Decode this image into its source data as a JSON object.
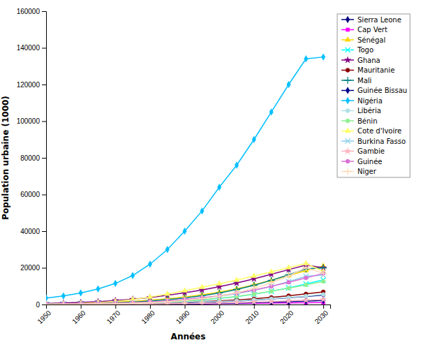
{
  "chart_data": {
    "type": "line",
    "xlabel": "Années",
    "ylabel": "Population urbaine (1000)",
    "x": [
      1950,
      1955,
      1960,
      1965,
      1970,
      1975,
      1980,
      1985,
      1990,
      1995,
      2000,
      2005,
      2010,
      2015,
      2020,
      2025,
      2030
    ],
    "series": [
      {
        "name": "Sierra Leone",
        "color": "#000080",
        "marker": "diamond",
        "values": [
          90,
          115,
          150,
          210,
          290,
          390,
          530,
          700,
          950,
          1200,
          1500,
          1900,
          2400,
          3000,
          3700,
          4400,
          5100
        ]
      },
      {
        "name": "Cap Vert",
        "color": "#FF00FF",
        "marker": "square",
        "values": [
          25,
          35,
          50,
          70,
          100,
          140,
          190,
          250,
          330,
          400,
          480,
          570,
          660,
          760,
          860,
          960,
          1060
        ]
      },
      {
        "name": "Sénégal",
        "color": "#FFD700",
        "marker": "triangle-up",
        "values": [
          420,
          560,
          740,
          980,
          1300,
          1750,
          2350,
          3100,
          4100,
          5300,
          6800,
          8600,
          10800,
          13200,
          15800,
          18500,
          21000
        ]
      },
      {
        "name": "Togo",
        "color": "#00FFFF",
        "marker": "x",
        "values": [
          110,
          160,
          230,
          340,
          490,
          700,
          990,
          1380,
          1880,
          2500,
          3300,
          4300,
          5600,
          7200,
          9100,
          11200,
          13400
        ]
      },
      {
        "name": "Ghana",
        "color": "#800080",
        "marker": "star",
        "values": [
          570,
          810,
          1130,
          1560,
          2150,
          2900,
          3850,
          5000,
          6400,
          7900,
          9700,
          11700,
          14000,
          16500,
          19000,
          21500,
          20000
        ]
      },
      {
        "name": "Mauritanie",
        "color": "#8B0000",
        "marker": "circle",
        "values": [
          50,
          75,
          110,
          160,
          240,
          370,
          570,
          850,
          1200,
          1600,
          2000,
          2500,
          3100,
          3900,
          4800,
          5800,
          6900
        ]
      },
      {
        "name": "Mali",
        "color": "#008080",
        "marker": "plus",
        "values": [
          250,
          350,
          490,
          680,
          950,
          1350,
          1900,
          2650,
          3600,
          4800,
          6300,
          8200,
          10500,
          13200,
          16200,
          19400,
          20000
        ]
      },
      {
        "name": "Guinée Bissau",
        "color": "#00008B",
        "marker": "diamond",
        "values": [
          25,
          35,
          50,
          70,
          100,
          140,
          200,
          280,
          380,
          500,
          640,
          800,
          1000,
          1250,
          1530,
          1840,
          2180
        ]
      },
      {
        "name": "Nigéria",
        "color": "#00BFFF",
        "marker": "diamond",
        "values": [
          3500,
          4700,
          6300,
          8500,
          11500,
          15800,
          22000,
          30000,
          40000,
          51000,
          64000,
          76000,
          90000,
          105000,
          120000,
          134000,
          135000
        ]
      },
      {
        "name": "Libéria",
        "color": "#B0E0E6",
        "marker": "circle",
        "values": [
          130,
          180,
          240,
          320,
          440,
          590,
          790,
          1040,
          1300,
          1500,
          1700,
          2000,
          2500,
          3100,
          3800,
          4600,
          5500
        ]
      },
      {
        "name": "Bénin",
        "color": "#90EE90",
        "marker": "circle",
        "values": [
          130,
          185,
          260,
          370,
          520,
          740,
          1040,
          1430,
          1940,
          2600,
          3400,
          4400,
          5700,
          7200,
          8900,
          10700,
          12600
        ]
      },
      {
        "name": "Cote d'Ivoire",
        "color": "#FFFF66",
        "marker": "triangle-up",
        "values": [
          220,
          370,
          610,
          1010,
          1660,
          2670,
          4050,
          5700,
          7500,
          9400,
          11300,
          13300,
          15500,
          17800,
          20100,
          22400,
          18000
        ]
      },
      {
        "name": "Burkina Fasso",
        "color": "#87CEEB",
        "marker": "x",
        "values": [
          130,
          185,
          265,
          385,
          565,
          830,
          1210,
          1740,
          2440,
          3340,
          4500,
          5900,
          7700,
          9900,
          12500,
          15400,
          16000
        ]
      },
      {
        "name": "Gambie",
        "color": "#FFB6C1",
        "marker": "star",
        "values": [
          30,
          45,
          65,
          95,
          140,
          200,
          280,
          380,
          520,
          680,
          870,
          1080,
          1340,
          1640,
          1980,
          2350,
          2750
        ]
      },
      {
        "name": "Guinée",
        "color": "#DA70D6",
        "marker": "circle",
        "values": [
          200,
          280,
          390,
          545,
          760,
          1060,
          1470,
          2020,
          2750,
          3680,
          4800,
          6200,
          7900,
          9900,
          12100,
          14500,
          17000
        ]
      },
      {
        "name": "Niger",
        "color": "#FFDAB9",
        "marker": "plus",
        "values": [
          100,
          145,
          210,
          310,
          460,
          690,
          1030,
          1540,
          2270,
          3250,
          4600,
          6400,
          8800,
          11800,
          15600,
          20100,
          17000
        ]
      }
    ],
    "xlim": [
      1950,
      2032
    ],
    "ylim": [
      0,
      160000
    ],
    "xticks": [
      1950,
      1960,
      1970,
      1980,
      1990,
      2000,
      2010,
      2020,
      2030
    ],
    "yticks": [
      0,
      20000,
      40000,
      60000,
      80000,
      100000,
      120000,
      140000,
      160000
    ],
    "grid": false,
    "legend": "upper right"
  }
}
